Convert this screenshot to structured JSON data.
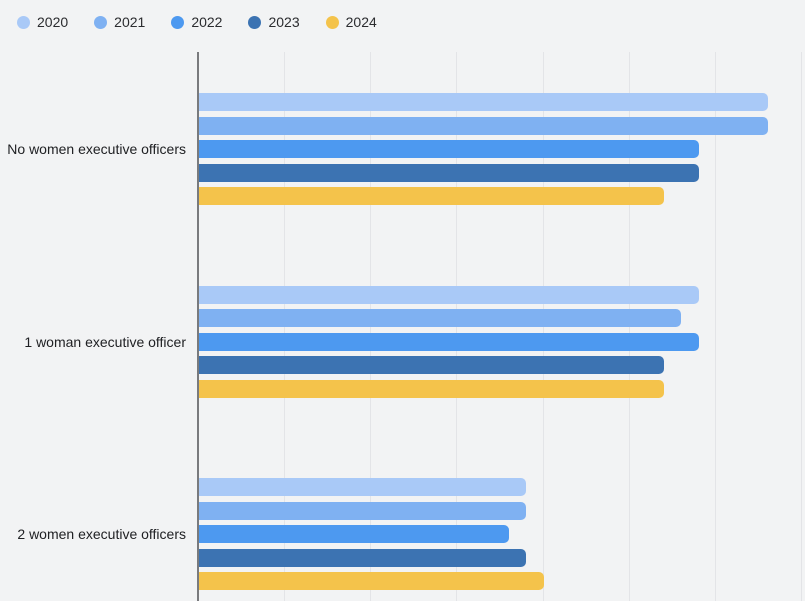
{
  "chart": {
    "background_color": "#f2f3f4",
    "gridline_color": "#e3e4e7",
    "axis_line_color": "#797a7d",
    "category_label_color": "#202124",
    "legend_label_color": "#2b2c2f"
  },
  "chart_data": {
    "type": "bar",
    "orientation": "horizontal",
    "title": "",
    "xlabel": "",
    "ylabel": "",
    "categories": [
      "No women executive officers",
      "1 woman executive officer",
      "2 women executive officers"
    ],
    "series": [
      {
        "name": "2020",
        "color": "#a9c9f7",
        "values": [
          66,
          58,
          38
        ]
      },
      {
        "name": "2021",
        "color": "#7fb1f2",
        "values": [
          66,
          56,
          38
        ]
      },
      {
        "name": "2022",
        "color": "#4d99f0",
        "values": [
          58,
          58,
          36
        ]
      },
      {
        "name": "2023",
        "color": "#3c73b2",
        "values": [
          58,
          54,
          38
        ]
      },
      {
        "name": "2024",
        "color": "#f4c34b",
        "values": [
          54,
          54,
          40
        ]
      }
    ],
    "xlim": [
      0,
      70
    ],
    "x_tick_step": 10,
    "x_axis_tick_labels_visible": false,
    "grid": true,
    "legend_position": "top-left"
  }
}
